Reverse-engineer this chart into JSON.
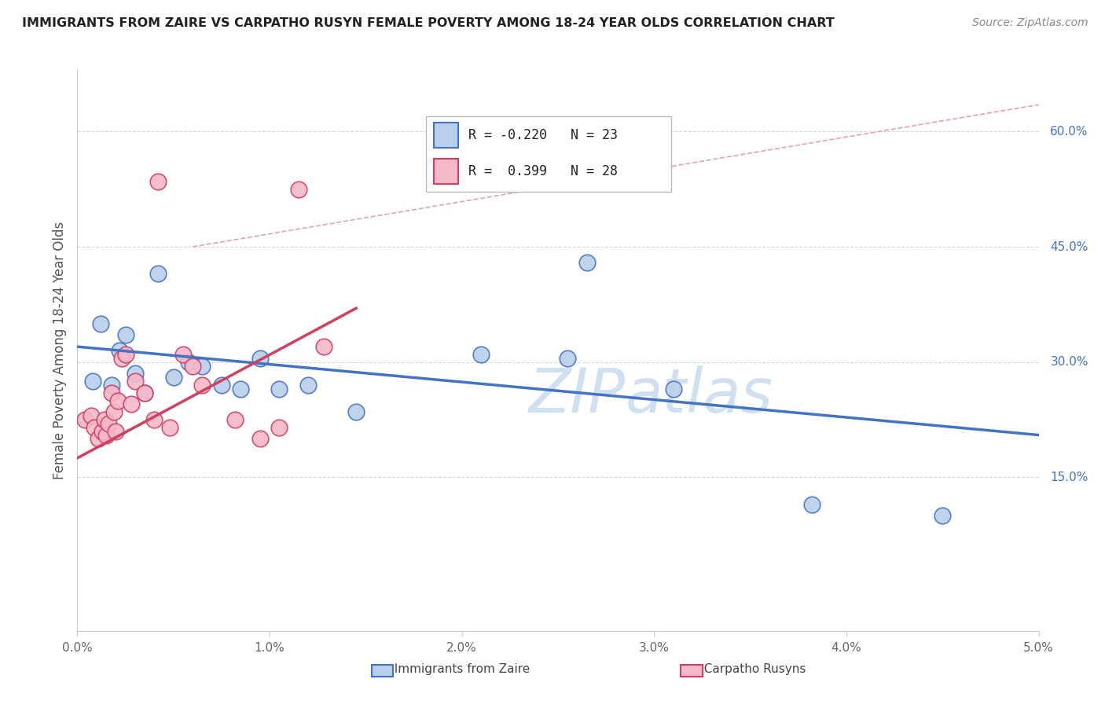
{
  "title": "IMMIGRANTS FROM ZAIRE VS CARPATHO RUSYN FEMALE POVERTY AMONG 18-24 YEAR OLDS CORRELATION CHART",
  "source": "Source: ZipAtlas.com",
  "ylabel_left": "Female Poverty Among 18-24 Year Olds",
  "legend_label1": "Immigrants from Zaire",
  "legend_label2": "Carpatho Rusyns",
  "R1": -0.22,
  "N1": 23,
  "R2": 0.399,
  "N2": 28,
  "xlim": [
    0.0,
    5.0
  ],
  "ylim": [
    -5.0,
    68.0
  ],
  "right_yticks": [
    15.0,
    30.0,
    45.0,
    60.0
  ],
  "bottom_xticks": [
    0.0,
    1.0,
    2.0,
    3.0,
    4.0,
    5.0
  ],
  "color_blue": "#b8d0ea",
  "color_pink": "#f5b8c8",
  "color_blue_line": "#4472c4",
  "color_pink_line": "#d04060",
  "color_diag": "#e8a0b0",
  "watermark_color": "#cfe0f0",
  "blue_scatter_x": [
    0.08,
    0.12,
    0.18,
    0.22,
    0.25,
    0.3,
    0.35,
    0.42,
    0.5,
    0.58,
    0.65,
    0.75,
    0.85,
    0.95,
    1.05,
    1.2,
    1.45,
    2.1,
    2.55,
    2.65,
    3.1,
    3.82,
    4.5
  ],
  "blue_scatter_y": [
    27.5,
    35.0,
    27.0,
    31.5,
    33.5,
    28.5,
    26.0,
    41.5,
    28.0,
    30.0,
    29.5,
    27.0,
    26.5,
    30.5,
    26.5,
    27.0,
    23.5,
    31.0,
    30.5,
    43.0,
    26.5,
    11.5,
    10.0
  ],
  "pink_scatter_x": [
    0.04,
    0.07,
    0.09,
    0.11,
    0.13,
    0.14,
    0.15,
    0.16,
    0.18,
    0.19,
    0.2,
    0.21,
    0.23,
    0.25,
    0.28,
    0.3,
    0.35,
    0.4,
    0.42,
    0.48,
    0.55,
    0.6,
    0.65,
    0.82,
    0.95,
    1.05,
    1.15,
    1.28
  ],
  "pink_scatter_y": [
    22.5,
    23.0,
    21.5,
    20.0,
    21.0,
    22.5,
    20.5,
    22.0,
    26.0,
    23.5,
    21.0,
    25.0,
    30.5,
    31.0,
    24.5,
    27.5,
    26.0,
    22.5,
    53.5,
    21.5,
    31.0,
    29.5,
    27.0,
    22.5,
    20.0,
    21.5,
    52.5,
    32.0
  ],
  "blue_line_x0": 0.0,
  "blue_line_x1": 5.0,
  "blue_line_y0": 32.0,
  "blue_line_y1": 20.5,
  "pink_line_x0": 0.0,
  "pink_line_x1": 1.45,
  "pink_line_y0": 17.5,
  "pink_line_y1": 37.0,
  "diag_x0": 0.6,
  "diag_y0": 45.0,
  "diag_x1": 5.0,
  "diag_y1": 63.5
}
